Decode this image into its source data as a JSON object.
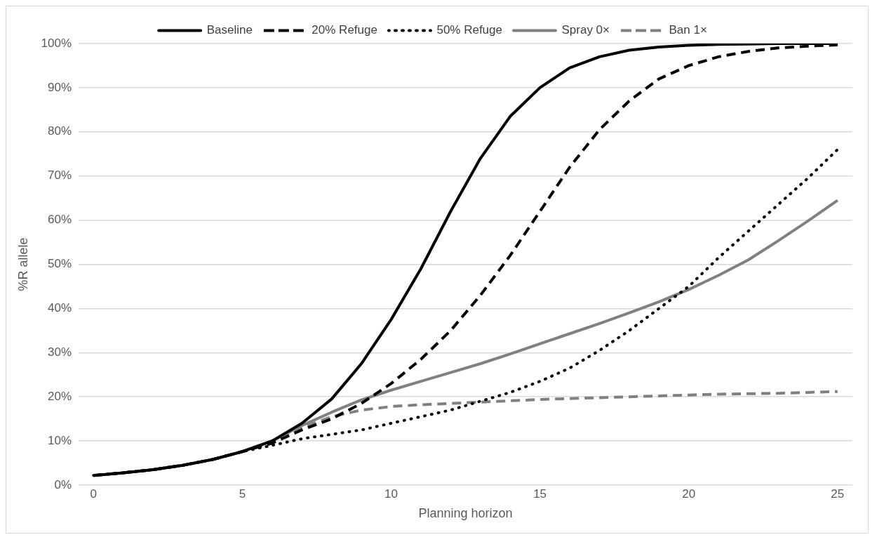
{
  "chart_data": {
    "type": "line",
    "xlabel": "Planning horizon",
    "ylabel": "%R allele",
    "x": [
      0,
      1,
      2,
      3,
      4,
      5,
      6,
      7,
      8,
      9,
      10,
      11,
      12,
      13,
      14,
      15,
      16,
      17,
      18,
      19,
      20,
      21,
      22,
      23,
      24,
      25
    ],
    "xlim": [
      -0.5,
      25.5
    ],
    "xticks": [
      0,
      5,
      10,
      15,
      20,
      25
    ],
    "ylim": [
      0,
      100
    ],
    "yticks": [
      {
        "value": 0,
        "label": "0%"
      },
      {
        "value": 10,
        "label": "10%"
      },
      {
        "value": 20,
        "label": "20%"
      },
      {
        "value": 30,
        "label": "30%"
      },
      {
        "value": 40,
        "label": "40%"
      },
      {
        "value": 50,
        "label": "50%"
      },
      {
        "value": 60,
        "label": "60%"
      },
      {
        "value": 70,
        "label": "70%"
      },
      {
        "value": 80,
        "label": "80%"
      },
      {
        "value": 90,
        "label": "90%"
      },
      {
        "value": 100,
        "label": "100%"
      }
    ],
    "grid": "y",
    "legend": "top",
    "marker": "none",
    "series": [
      {
        "name": "Baseline",
        "color": "#000000",
        "line_style": "solid",
        "values": [
          2.2,
          2.8,
          3.5,
          4.5,
          5.8,
          7.6,
          10,
          14,
          19.5,
          27.5,
          37.5,
          49,
          62,
          74,
          83.5,
          90,
          94.5,
          97,
          98.5,
          99.2,
          99.6,
          99.8,
          99.9,
          100,
          100,
          100
        ]
      },
      {
        "name": "20% Refuge",
        "color": "#000000",
        "line_style": "dashed",
        "values": [
          2.2,
          2.8,
          3.5,
          4.5,
          5.8,
          7.6,
          9.5,
          12.5,
          15,
          18.5,
          23,
          28.5,
          35,
          43,
          52,
          62,
          72,
          80.5,
          87,
          92,
          95,
          97,
          98.2,
          99,
          99.4,
          99.7
        ]
      },
      {
        "name": "50% Refuge",
        "color": "#000000",
        "line_style": "dotted",
        "values": [
          2.2,
          2.8,
          3.5,
          4.5,
          5.8,
          7.6,
          9,
          10.5,
          11.5,
          12.5,
          14,
          15.5,
          17,
          19,
          21,
          23.5,
          26.5,
          30.5,
          35,
          40,
          45,
          51.5,
          57.5,
          63.5,
          69.5,
          76
        ]
      },
      {
        "name": "Spray 0×",
        "color": "#808080",
        "line_style": "solid",
        "values": [
          2.2,
          2.8,
          3.5,
          4.5,
          5.8,
          7.6,
          10,
          13.5,
          16.5,
          19.3,
          21.5,
          23.5,
          25.5,
          27.5,
          29.7,
          32,
          34.3,
          36.6,
          39,
          41.5,
          44.3,
          47.5,
          51,
          55.3,
          59.8,
          64.5
        ]
      },
      {
        "name": "Ban 1×",
        "color": "#808080",
        "line_style": "dashed",
        "values": [
          2.2,
          2.8,
          3.5,
          4.5,
          5.8,
          7.6,
          10,
          13,
          15.5,
          17,
          17.8,
          18.2,
          18.5,
          18.8,
          19.1,
          19.4,
          19.6,
          19.8,
          20,
          20.2,
          20.4,
          20.6,
          20.7,
          20.8,
          21,
          21.2
        ]
      }
    ]
  }
}
